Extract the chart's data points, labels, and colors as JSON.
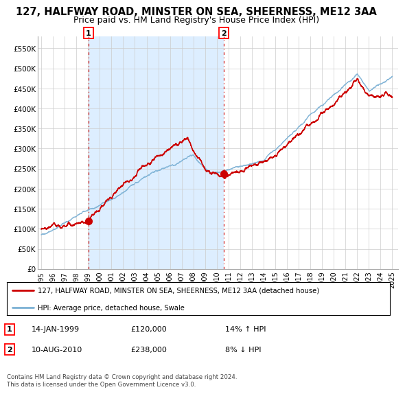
{
  "title": "127, HALFWAY ROAD, MINSTER ON SEA, SHEERNESS, ME12 3AA",
  "subtitle": "Price paid vs. HM Land Registry's House Price Index (HPI)",
  "title_fontsize": 10.5,
  "subtitle_fontsize": 9,
  "background_color": "#ffffff",
  "plot_bg_color": "#ffffff",
  "shade_color": "#ddeeff",
  "grid_color": "#cccccc",
  "red_line_color": "#cc0000",
  "blue_line_color": "#7ab0d4",
  "marker1_x": 1999.04,
  "marker1_y": 120000,
  "marker2_x": 2010.6,
  "marker2_y": 238000,
  "ylim_min": 0,
  "ylim_max": 580000,
  "yticks": [
    0,
    50000,
    100000,
    150000,
    200000,
    250000,
    300000,
    350000,
    400000,
    450000,
    500000,
    550000
  ],
  "ytick_labels": [
    "£0",
    "£50K",
    "£100K",
    "£150K",
    "£200K",
    "£250K",
    "£300K",
    "£350K",
    "£400K",
    "£450K",
    "£500K",
    "£550K"
  ],
  "xlim_min": 1994.7,
  "xlim_max": 2025.5,
  "xtick_years": [
    1995,
    1996,
    1997,
    1998,
    1999,
    2000,
    2001,
    2002,
    2003,
    2004,
    2005,
    2006,
    2007,
    2008,
    2009,
    2010,
    2011,
    2012,
    2013,
    2014,
    2015,
    2016,
    2017,
    2018,
    2019,
    2020,
    2021,
    2022,
    2023,
    2024,
    2025
  ],
  "legend_red_label": "127, HALFWAY ROAD, MINSTER ON SEA, SHEERNESS, ME12 3AA (detached house)",
  "legend_blue_label": "HPI: Average price, detached house, Swale",
  "note1_label": "1",
  "note1_date": "14-JAN-1999",
  "note1_price": "£120,000",
  "note1_hpi": "14% ↑ HPI",
  "note2_label": "2",
  "note2_date": "10-AUG-2010",
  "note2_price": "£238,000",
  "note2_hpi": "8% ↓ HPI",
  "copyright": "Contains HM Land Registry data © Crown copyright and database right 2024.\nThis data is licensed under the Open Government Licence v3.0."
}
